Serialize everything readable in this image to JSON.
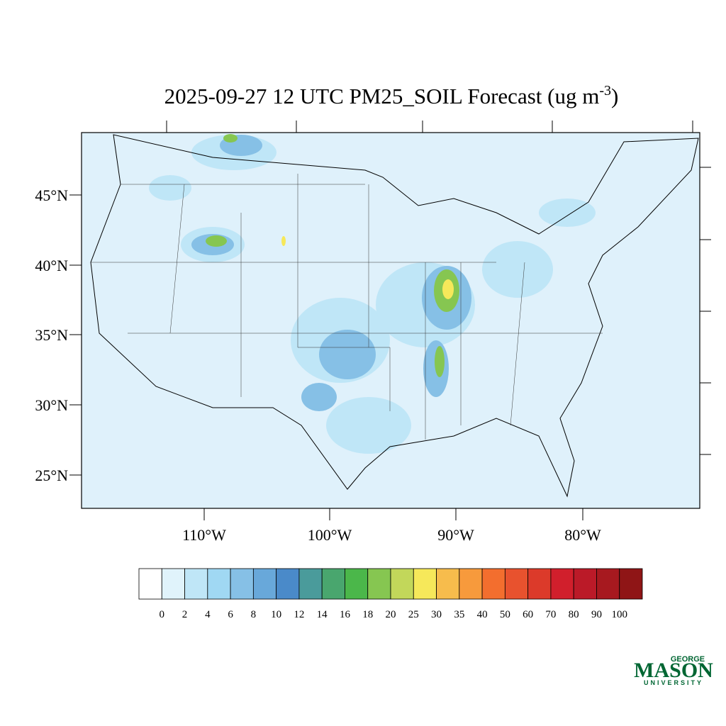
{
  "title": {
    "main": "2025-09-27 12 UTC PM25_SOIL Forecast (ug m",
    "superscript": "-3",
    "close": ")"
  },
  "latitude_labels": [
    "45°N",
    "40°N",
    "35°N",
    "30°N",
    "25°N"
  ],
  "longitude_labels": [
    "110°W",
    "100°W",
    "90°W",
    "80°W"
  ],
  "colorbar": {
    "levels": [
      0,
      2,
      4,
      6,
      8,
      10,
      12,
      14,
      16,
      18,
      20,
      25,
      30,
      35,
      40,
      50,
      60,
      70,
      80,
      90,
      100
    ],
    "colors": [
      "#ffffff",
      "#e0f3fb",
      "#bfe6f7",
      "#a0d8f3",
      "#86c0e6",
      "#68a8da",
      "#4a8ac9",
      "#4a9b9b",
      "#49a66e",
      "#4bb74a",
      "#86c651",
      "#c2d75a",
      "#f6e85a",
      "#f7bc4c",
      "#f79a3c",
      "#f36e2e",
      "#e8522e",
      "#dc3a2a",
      "#d11f2c",
      "#bb1a28",
      "#a7191f",
      "#8f1516"
    ]
  },
  "logo": {
    "top": "GEORGE",
    "main": "MASON",
    "bottom": "UNIVERSITY"
  }
}
